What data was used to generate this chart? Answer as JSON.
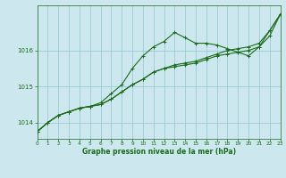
{
  "title": "Graphe pression niveau de la mer (hPa)",
  "background_color": "#cce8ee",
  "grid_color": "#99ccd6",
  "line_color": "#1a6b1a",
  "xlim": [
    0,
    23
  ],
  "ylim": [
    1013.55,
    1017.25
  ],
  "yticks": [
    1014,
    1015,
    1016
  ],
  "xticks": [
    0,
    1,
    2,
    3,
    4,
    5,
    6,
    7,
    8,
    9,
    10,
    11,
    12,
    13,
    14,
    15,
    16,
    17,
    18,
    19,
    20,
    21,
    22,
    23
  ],
  "series1": {
    "x": [
      0,
      1,
      2,
      3,
      4,
      5,
      6,
      7,
      8,
      9,
      10,
      11,
      12,
      13,
      14,
      15,
      16,
      17,
      18,
      19,
      20,
      21,
      22,
      23
    ],
    "y": [
      1013.75,
      1014.0,
      1014.2,
      1014.3,
      1014.4,
      1014.45,
      1014.55,
      1014.8,
      1015.05,
      1015.5,
      1015.85,
      1016.1,
      1016.25,
      1016.5,
      1016.35,
      1016.2,
      1016.2,
      1016.15,
      1016.05,
      1015.95,
      1015.85,
      1016.1,
      1016.55,
      1017.0
    ]
  },
  "series2": {
    "x": [
      0,
      1,
      2,
      3,
      4,
      5,
      6,
      7,
      8,
      9,
      10,
      11,
      12,
      13,
      14,
      15,
      16,
      17,
      18,
      19,
      20,
      21,
      22,
      23
    ],
    "y": [
      1013.75,
      1014.0,
      1014.2,
      1014.3,
      1014.4,
      1014.45,
      1014.5,
      1014.65,
      1014.85,
      1015.05,
      1015.2,
      1015.4,
      1015.5,
      1015.6,
      1015.65,
      1015.7,
      1015.8,
      1015.9,
      1016.0,
      1016.05,
      1016.1,
      1016.2,
      1016.55,
      1017.0
    ]
  },
  "series3": {
    "x": [
      0,
      1,
      2,
      3,
      4,
      5,
      6,
      7,
      8,
      9,
      10,
      11,
      12,
      13,
      14,
      15,
      16,
      17,
      18,
      19,
      20,
      21,
      22,
      23
    ],
    "y": [
      1013.75,
      1014.0,
      1014.2,
      1014.3,
      1014.4,
      1014.45,
      1014.5,
      1014.65,
      1014.85,
      1015.05,
      1015.2,
      1015.4,
      1015.5,
      1015.55,
      1015.6,
      1015.65,
      1015.75,
      1015.85,
      1015.9,
      1015.95,
      1016.0,
      1016.1,
      1016.4,
      1017.0
    ]
  }
}
